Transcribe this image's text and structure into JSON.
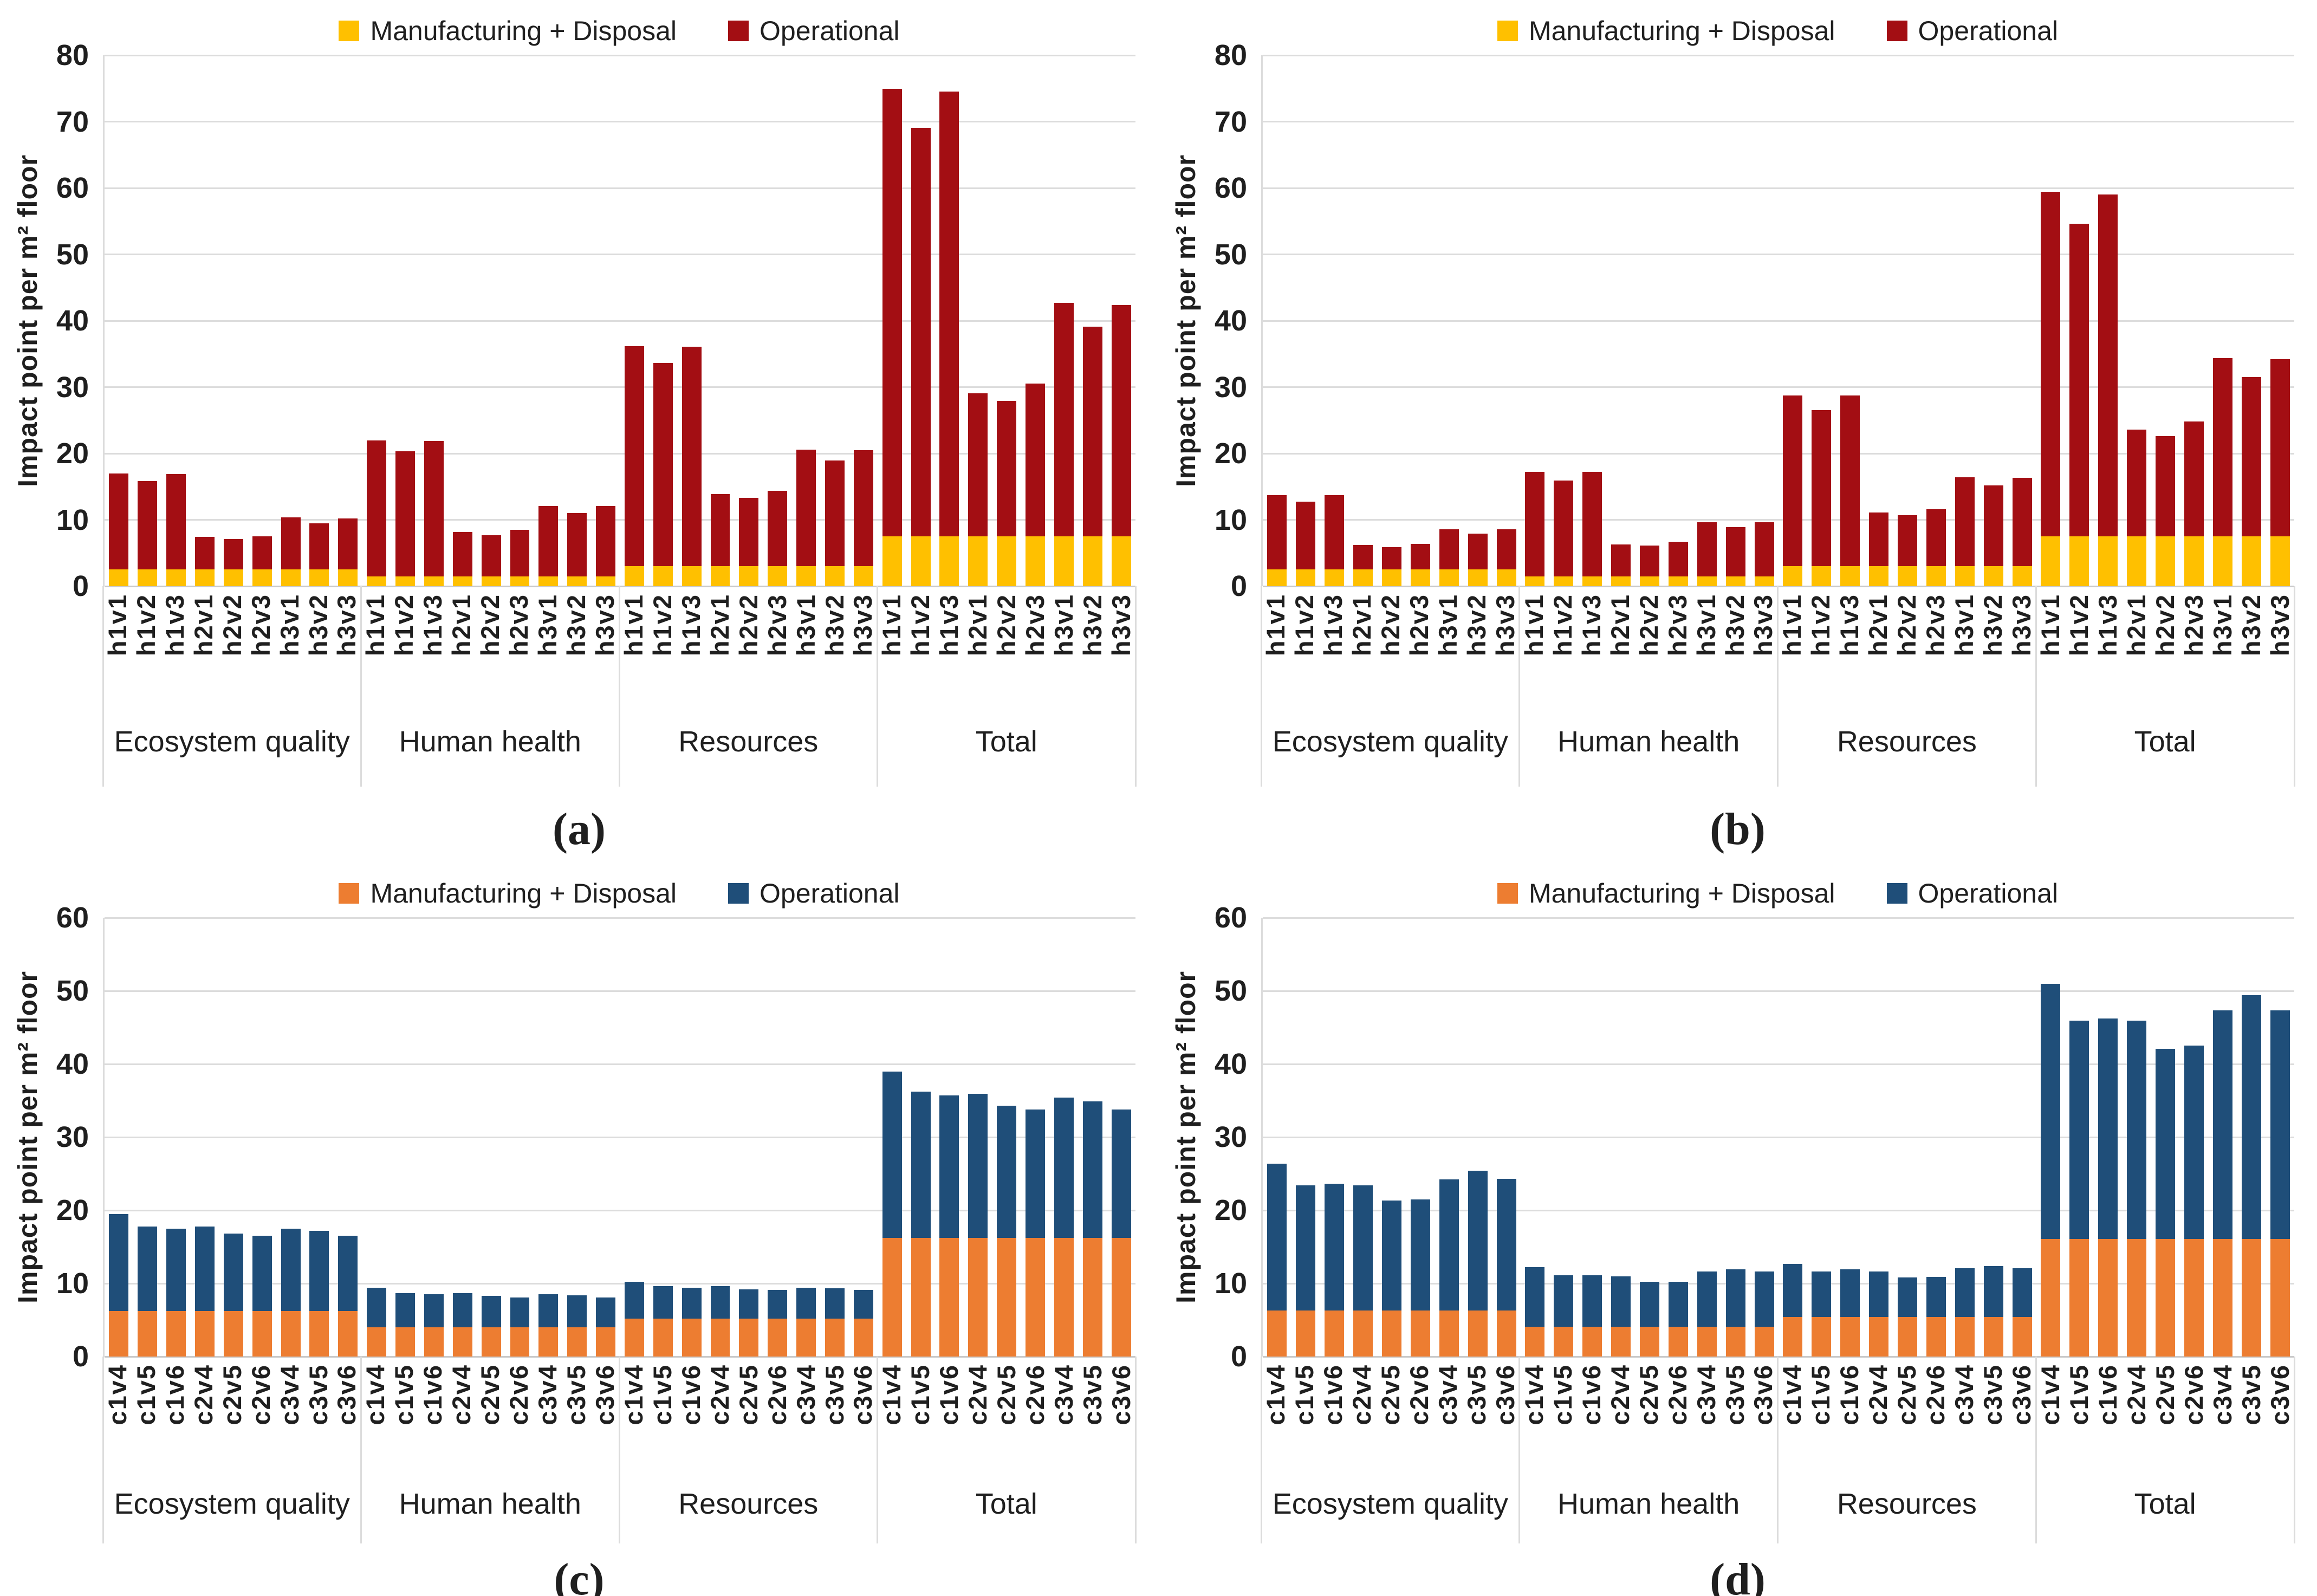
{
  "chart_data": [
    {
      "id": "a",
      "type": "bar",
      "stacked": true,
      "caption": "(a)",
      "ylabel": "Impact point per m² floor",
      "ylim": [
        0,
        80
      ],
      "ytick_step": 10,
      "grid": true,
      "legend_position": "top",
      "legend": [
        {
          "label": "Manufacturing + Disposal",
          "color": "#FFC000"
        },
        {
          "label": "Operational",
          "color": "#A30E13"
        }
      ],
      "groups": [
        {
          "label": "Ecosystem quality",
          "categories": [
            "h1v1",
            "h1v2",
            "h1v3",
            "h2v1",
            "h2v2",
            "h2v3",
            "h3v1",
            "h3v2",
            "h3v3"
          ],
          "manufacturing_disposal": [
            2.5,
            2.5,
            2.5,
            2.5,
            2.5,
            2.5,
            2.5,
            2.5,
            2.5
          ],
          "operational": [
            14.5,
            13.3,
            14.4,
            4.9,
            4.6,
            5.0,
            7.9,
            7.0,
            7.7
          ],
          "totals": [
            17.0,
            15.8,
            16.9,
            7.4,
            7.1,
            7.5,
            10.4,
            9.5,
            10.2
          ]
        },
        {
          "label": "Human health",
          "categories": [
            "h1v1",
            "h1v2",
            "h1v3",
            "h2v1",
            "h2v2",
            "h2v3",
            "h3v1",
            "h3v2",
            "h3v3"
          ],
          "manufacturing_disposal": [
            1.5,
            1.5,
            1.5,
            1.5,
            1.5,
            1.5,
            1.5,
            1.5,
            1.5
          ],
          "operational": [
            20.5,
            18.8,
            20.4,
            6.7,
            6.2,
            7.0,
            10.6,
            9.5,
            10.6
          ],
          "totals": [
            22.0,
            20.3,
            21.9,
            8.2,
            7.7,
            8.5,
            12.1,
            11.0,
            12.1
          ]
        },
        {
          "label": "Resources",
          "categories": [
            "h1v1",
            "h1v2",
            "h1v3",
            "h2v1",
            "h2v2",
            "h2v3",
            "h3v1",
            "h3v2",
            "h3v3"
          ],
          "manufacturing_disposal": [
            3.0,
            3.0,
            3.0,
            3.0,
            3.0,
            3.0,
            3.0,
            3.0,
            3.0
          ],
          "operational": [
            33.2,
            30.6,
            33.1,
            10.9,
            10.3,
            11.4,
            17.6,
            15.9,
            17.5
          ],
          "totals": [
            36.2,
            33.6,
            36.1,
            13.9,
            13.3,
            14.4,
            20.6,
            18.9,
            20.5
          ]
        },
        {
          "label": "Total",
          "categories": [
            "h1v1",
            "h1v2",
            "h1v3",
            "h2v1",
            "h2v2",
            "h2v3",
            "h3v1",
            "h3v2",
            "h3v3"
          ],
          "manufacturing_disposal": [
            7.5,
            7.5,
            7.5,
            7.5,
            7.5,
            7.5,
            7.5,
            7.5,
            7.5
          ],
          "operational": [
            67.4,
            61.6,
            67.0,
            21.6,
            20.4,
            23.0,
            35.2,
            31.6,
            34.9
          ],
          "totals": [
            74.9,
            69.1,
            74.5,
            29.1,
            27.9,
            30.5,
            42.7,
            39.1,
            42.4
          ]
        }
      ]
    },
    {
      "id": "b",
      "type": "bar",
      "stacked": true,
      "caption": "(b)",
      "ylabel": "Impact point per m² floor",
      "ylim": [
        0,
        80
      ],
      "ytick_step": 10,
      "grid": true,
      "legend_position": "top",
      "legend": [
        {
          "label": "Manufacturing + Disposal",
          "color": "#FFC000"
        },
        {
          "label": "Operational",
          "color": "#A30E13"
        }
      ],
      "groups": [
        {
          "label": "Ecosystem quality",
          "categories": [
            "h1v1",
            "h1v2",
            "h1v3",
            "h2v1",
            "h2v2",
            "h2v3",
            "h3v1",
            "h3v2",
            "h3v3"
          ],
          "manufacturing_disposal": [
            2.5,
            2.5,
            2.5,
            2.5,
            2.5,
            2.5,
            2.5,
            2.5,
            2.5
          ],
          "operational": [
            11.2,
            10.2,
            11.2,
            3.7,
            3.4,
            3.9,
            6.1,
            5.4,
            6.1
          ],
          "totals": [
            13.7,
            12.7,
            13.7,
            6.2,
            5.9,
            6.4,
            8.6,
            7.9,
            8.6
          ]
        },
        {
          "label": "Human health",
          "categories": [
            "h1v1",
            "h1v2",
            "h1v3",
            "h2v1",
            "h2v2",
            "h2v3",
            "h3v1",
            "h3v2",
            "h3v3"
          ],
          "manufacturing_disposal": [
            1.5,
            1.5,
            1.5,
            1.5,
            1.5,
            1.5,
            1.5,
            1.5,
            1.5
          ],
          "operational": [
            15.7,
            14.4,
            15.7,
            4.8,
            4.6,
            5.2,
            8.1,
            7.4,
            8.1
          ],
          "totals": [
            17.2,
            15.9,
            17.2,
            6.3,
            6.1,
            6.7,
            9.6,
            8.9,
            9.6
          ]
        },
        {
          "label": "Resources",
          "categories": [
            "h1v1",
            "h1v2",
            "h1v3",
            "h2v1",
            "h2v2",
            "h2v3",
            "h3v1",
            "h3v2",
            "h3v3"
          ],
          "manufacturing_disposal": [
            3.0,
            3.0,
            3.0,
            3.0,
            3.0,
            3.0,
            3.0,
            3.0,
            3.0
          ],
          "operational": [
            25.7,
            23.5,
            25.7,
            8.1,
            7.7,
            8.6,
            13.4,
            12.2,
            13.3
          ],
          "totals": [
            28.7,
            26.5,
            28.7,
            11.1,
            10.7,
            11.6,
            16.4,
            15.2,
            16.3
          ]
        },
        {
          "label": "Total",
          "categories": [
            "h1v1",
            "h1v2",
            "h1v3",
            "h2v1",
            "h2v2",
            "h2v3",
            "h3v1",
            "h3v2",
            "h3v3"
          ],
          "manufacturing_disposal": [
            7.5,
            7.5,
            7.5,
            7.5,
            7.5,
            7.5,
            7.5,
            7.5,
            7.5
          ],
          "operational": [
            51.9,
            47.1,
            51.5,
            16.1,
            15.1,
            17.3,
            26.9,
            24.0,
            26.7
          ],
          "totals": [
            59.4,
            54.6,
            59.0,
            23.6,
            22.6,
            24.8,
            34.4,
            31.5,
            34.2
          ]
        }
      ]
    },
    {
      "id": "c",
      "type": "bar",
      "stacked": true,
      "caption": "(c)",
      "ylabel": "Impact point per m² floor",
      "ylim": [
        0,
        60
      ],
      "ytick_step": 10,
      "grid": true,
      "legend_position": "top",
      "legend": [
        {
          "label": "Manufacturing + Disposal",
          "color": "#ED7D31"
        },
        {
          "label": "Operational",
          "color": "#1F4E79"
        }
      ],
      "groups": [
        {
          "label": "Ecosystem quality",
          "categories": [
            "c1v4",
            "c1v5",
            "c1v6",
            "c2v4",
            "c2v5",
            "c2v6",
            "c3v4",
            "c3v5",
            "c3v6"
          ],
          "manufacturing_disposal": [
            6.2,
            6.2,
            6.2,
            6.2,
            6.2,
            6.2,
            6.2,
            6.2,
            6.2
          ],
          "operational": [
            13.3,
            11.6,
            11.3,
            11.6,
            10.6,
            10.3,
            11.3,
            11.0,
            10.3
          ],
          "totals": [
            19.5,
            17.8,
            17.5,
            17.8,
            16.8,
            16.5,
            17.5,
            17.2,
            16.5
          ]
        },
        {
          "label": "Human health",
          "categories": [
            "c1v4",
            "c1v5",
            "c1v6",
            "c2v4",
            "c2v5",
            "c2v6",
            "c3v4",
            "c3v5",
            "c3v6"
          ],
          "manufacturing_disposal": [
            4.0,
            4.0,
            4.0,
            4.0,
            4.0,
            4.0,
            4.0,
            4.0,
            4.0
          ],
          "operational": [
            5.4,
            4.7,
            4.5,
            4.7,
            4.3,
            4.1,
            4.5,
            4.4,
            4.1
          ],
          "totals": [
            9.4,
            8.7,
            8.5,
            8.7,
            8.3,
            8.1,
            8.5,
            8.4,
            8.1
          ]
        },
        {
          "label": "Resources",
          "categories": [
            "c1v4",
            "c1v5",
            "c1v6",
            "c2v4",
            "c2v5",
            "c2v6",
            "c3v4",
            "c3v5",
            "c3v6"
          ],
          "manufacturing_disposal": [
            5.2,
            5.2,
            5.2,
            5.2,
            5.2,
            5.2,
            5.2,
            5.2,
            5.2
          ],
          "operational": [
            5.0,
            4.4,
            4.2,
            4.4,
            4.0,
            3.9,
            4.2,
            4.1,
            3.9
          ],
          "totals": [
            10.2,
            9.6,
            9.4,
            9.6,
            9.2,
            9.1,
            9.4,
            9.3,
            9.1
          ]
        },
        {
          "label": "Total",
          "categories": [
            "c1v4",
            "c1v5",
            "c1v6",
            "c2v4",
            "c2v5",
            "c2v6",
            "c3v4",
            "c3v5",
            "c3v6"
          ],
          "manufacturing_disposal": [
            16.2,
            16.2,
            16.2,
            16.2,
            16.2,
            16.2,
            16.2,
            16.2,
            16.2
          ],
          "operational": [
            22.8,
            20.0,
            19.5,
            19.7,
            18.1,
            17.6,
            19.2,
            18.7,
            17.6
          ],
          "totals": [
            39.0,
            36.2,
            35.7,
            35.9,
            34.3,
            33.8,
            35.4,
            34.9,
            33.8
          ]
        }
      ]
    },
    {
      "id": "d",
      "type": "bar",
      "stacked": true,
      "caption": "(d)",
      "ylabel": "Impact point per m² floor",
      "ylim": [
        0,
        60
      ],
      "ytick_step": 10,
      "grid": true,
      "legend_position": "top",
      "legend": [
        {
          "label": "Manufacturing + Disposal",
          "color": "#ED7D31"
        },
        {
          "label": "Operational",
          "color": "#1F4E79"
        }
      ],
      "groups": [
        {
          "label": "Ecosystem quality",
          "categories": [
            "c1v4",
            "c1v5",
            "c1v6",
            "c2v4",
            "c2v5",
            "c2v6",
            "c3v4",
            "c3v5",
            "c3v6"
          ],
          "manufacturing_disposal": [
            6.3,
            6.3,
            6.3,
            6.3,
            6.3,
            6.3,
            6.3,
            6.3,
            6.3
          ],
          "operational": [
            20.1,
            17.1,
            17.3,
            17.1,
            15.0,
            15.2,
            17.9,
            19.1,
            18.0
          ],
          "totals": [
            26.4,
            23.4,
            23.6,
            23.4,
            21.3,
            21.5,
            24.2,
            25.4,
            24.3
          ]
        },
        {
          "label": "Human health",
          "categories": [
            "c1v4",
            "c1v5",
            "c1v6",
            "c2v4",
            "c2v5",
            "c2v6",
            "c3v4",
            "c3v5",
            "c3v6"
          ],
          "manufacturing_disposal": [
            4.1,
            4.1,
            4.1,
            4.1,
            4.1,
            4.1,
            4.1,
            4.1,
            4.1
          ],
          "operational": [
            8.1,
            7.0,
            7.0,
            6.9,
            6.1,
            6.1,
            7.5,
            7.8,
            7.5
          ],
          "totals": [
            12.2,
            11.1,
            11.1,
            11.0,
            10.2,
            10.2,
            11.6,
            11.9,
            11.6
          ]
        },
        {
          "label": "Resources",
          "categories": [
            "c1v4",
            "c1v5",
            "c1v6",
            "c2v4",
            "c2v5",
            "c2v6",
            "c3v4",
            "c3v5",
            "c3v6"
          ],
          "manufacturing_disposal": [
            5.4,
            5.4,
            5.4,
            5.4,
            5.4,
            5.4,
            5.4,
            5.4,
            5.4
          ],
          "operational": [
            7.3,
            6.2,
            6.5,
            6.2,
            5.4,
            5.5,
            6.7,
            7.0,
            6.7
          ],
          "totals": [
            12.7,
            11.6,
            11.9,
            11.6,
            10.8,
            10.9,
            12.1,
            12.4,
            12.1
          ]
        },
        {
          "label": "Total",
          "categories": [
            "c1v4",
            "c1v5",
            "c1v6",
            "c2v4",
            "c2v5",
            "c2v6",
            "c3v4",
            "c3v5",
            "c3v6"
          ],
          "manufacturing_disposal": [
            16.1,
            16.1,
            16.1,
            16.1,
            16.1,
            16.1,
            16.1,
            16.1,
            16.1
          ],
          "operational": [
            34.9,
            29.8,
            30.1,
            29.8,
            26.0,
            26.4,
            31.2,
            33.3,
            31.2
          ],
          "totals": [
            51.0,
            45.9,
            46.2,
            45.9,
            42.1,
            42.5,
            47.3,
            49.4,
            47.3
          ]
        }
      ]
    }
  ]
}
